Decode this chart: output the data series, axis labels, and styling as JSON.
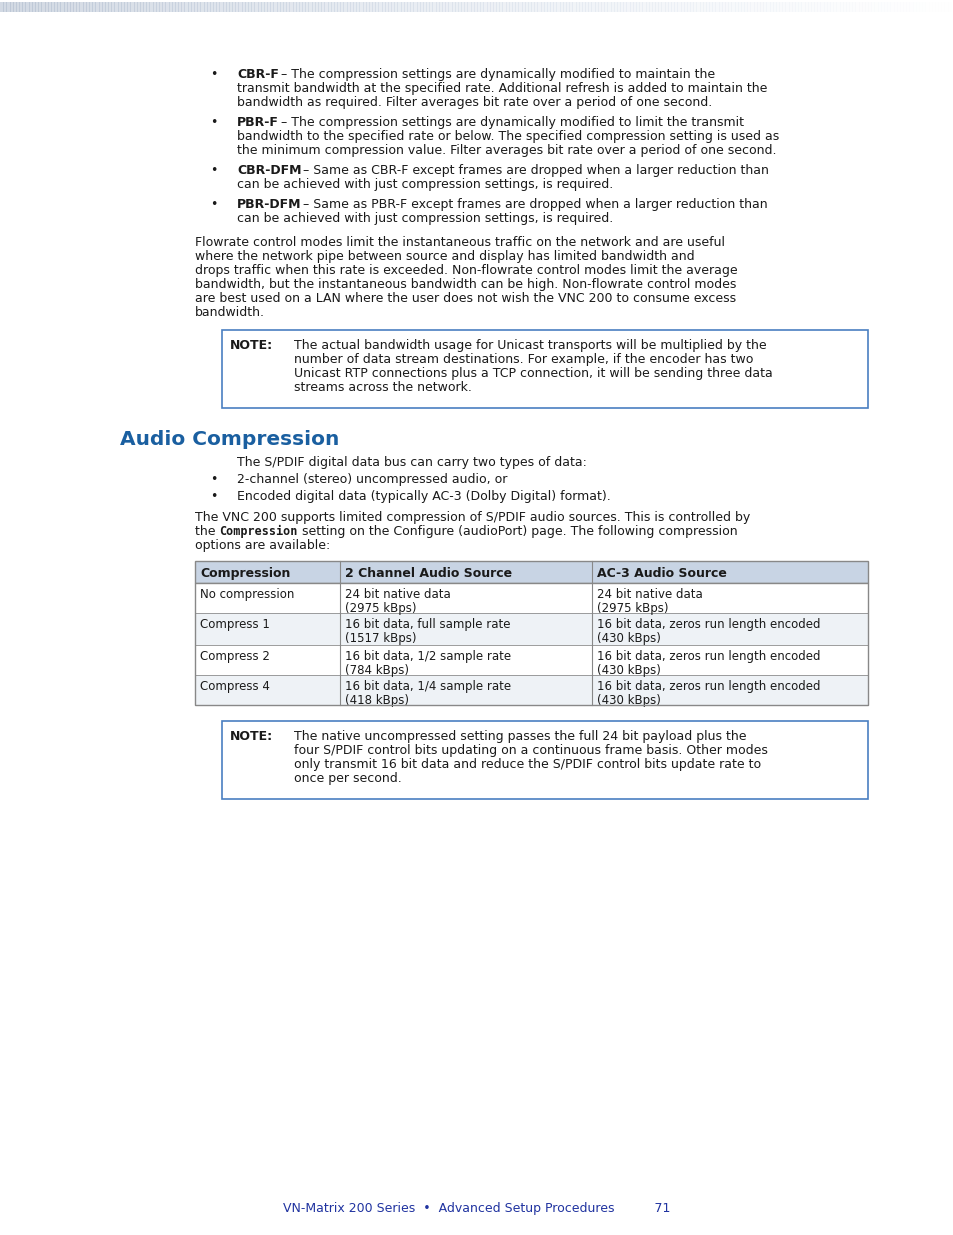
{
  "page_bg": "#ffffff",
  "footer_text": "VN-Matrix 200 Series  •  Advanced Setup Procedures          71",
  "footer_color": "#2033a0",
  "section_title": "Audio Compression",
  "section_title_color": "#1a5fa0",
  "bullet_items": [
    {
      "bold": "CBR-F",
      "lines": [
        "– The compression settings are dynamically modified to maintain the",
        "transmit bandwidth at the specified rate. Additional refresh is added to maintain the",
        "bandwidth as required. Filter averages bit rate over a period of one second."
      ]
    },
    {
      "bold": "PBR-F",
      "lines": [
        "– The compression settings are dynamically modified to limit the transmit",
        "bandwidth to the specified rate or below. The specified compression setting is used as",
        "the minimum compression value. Filter averages bit rate over a period of one second."
      ]
    },
    {
      "bold": "CBR-DFM",
      "lines": [
        "– Same as CBR-F except frames are dropped when a larger reduction than",
        "can be achieved with just compression settings, is required."
      ]
    },
    {
      "bold": "PBR-DFM",
      "lines": [
        "– Same as PBR-F except frames are dropped when a larger reduction than",
        "can be achieved with just compression settings, is required."
      ]
    }
  ],
  "flowrate_lines": [
    "Flowrate control modes limit the instantaneous traffic on the network and are useful",
    "where the network pipe between source and display has limited bandwidth and",
    "drops traffic when this rate is exceeded. Non-flowrate control modes limit the average",
    "bandwidth, but the instantaneous bandwidth can be high. Non-flowrate control modes",
    "are best used on a LAN where the user does not wish the VNC 200 to consume excess",
    "bandwidth."
  ],
  "note1_label": "NOTE:",
  "note1_lines": [
    "The actual bandwidth usage for Unicast transports will be multiplied by the",
    "number of data stream destinations. For example, if the encoder has two",
    "Unicast RTP connections plus a TCP connection, it will be sending three data",
    "streams across the network."
  ],
  "note_border": "#4a7fc1",
  "audio_intro": "The S/PDIF digital data bus can carry two types of data:",
  "audio_bullets": [
    "2-channel (stereo) uncompressed audio, or",
    "Encoded digital data (typically AC-3 (Dolby Digital) format)."
  ],
  "audio_para_line1": "The VNC 200 supports limited compression of S/PDIF audio sources. This is controlled by",
  "audio_para_line2a": "the ",
  "audio_para_line2b": "Compression",
  "audio_para_line2c": " setting on the Configure (audioPort) page. The following compression",
  "audio_para_line3": "options are available:",
  "table_headers": [
    "Compression",
    "2 Channel Audio Source",
    "AC-3 Audio Source"
  ],
  "table_header_bg": "#c8d4e4",
  "table_rows": [
    [
      "No compression",
      "24 bit native data\n(2975 kBps)",
      "24 bit native data\n(2975 kBps)"
    ],
    [
      "Compress 1",
      "16 bit data, full sample rate\n(1517 kBps)",
      "16 bit data, zeros run length encoded\n(430 kBps)"
    ],
    [
      "Compress 2",
      "16 bit data, 1/2 sample rate\n(784 kBps)",
      "16 bit data, zeros run length encoded\n(430 kBps)"
    ],
    [
      "Compress 4",
      "16 bit data, 1/4 sample rate\n(418 kBps)",
      "16 bit data, zeros run length encoded\n(430 kBps)"
    ]
  ],
  "table_border": "#888888",
  "table_alt_bg": "#eef2f6",
  "note2_label": "NOTE:",
  "note2_lines": [
    "The native uncompressed setting passes the full 24 bit payload plus the",
    "four S/PDIF control bits updating on a continuous frame basis. Other modes",
    "only transmit 16 bit data and reduce the S/PDIF control bits update rate to",
    "once per second."
  ],
  "text_color": "#1a1a1a",
  "fs": 9.0,
  "lh": 14.0
}
